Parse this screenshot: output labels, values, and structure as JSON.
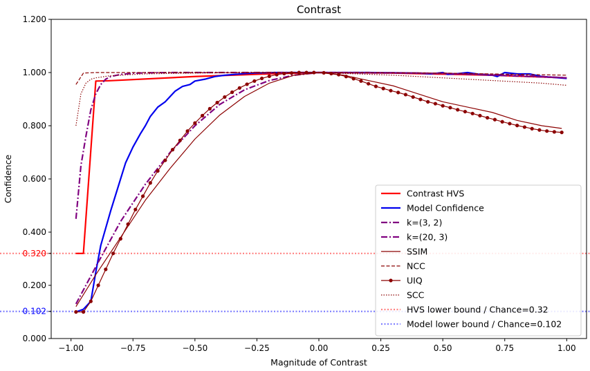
{
  "chart_data": {
    "type": "line",
    "title": "Contrast",
    "xlabel": "Magnitude of Contrast",
    "ylabel": "Confidence",
    "xlim": [
      -1.08,
      1.08
    ],
    "ylim": [
      0.0,
      1.2
    ],
    "xticks": [
      -1.0,
      -0.75,
      -0.5,
      -0.25,
      0.0,
      0.25,
      0.5,
      0.75,
      1.0
    ],
    "xtick_labels": [
      "−1.00",
      "−0.75",
      "−0.50",
      "−0.25",
      "0.00",
      "0.25",
      "0.50",
      "0.75",
      "1.00"
    ],
    "yticks": [
      0.0,
      0.2,
      0.4,
      0.6,
      0.8,
      1.0,
      1.2
    ],
    "ytick_labels": [
      "0.000",
      "0.200",
      "0.400",
      "0.600",
      "0.800",
      "1.000",
      "1.200"
    ],
    "extra_yticks": [
      {
        "value": 0.32,
        "label": "0.320",
        "color": "#ff0000"
      },
      {
        "value": 0.102,
        "label": "0.102",
        "color": "#0000ff"
      }
    ],
    "grid": false,
    "legend_position": "lower-right",
    "hlines": [
      {
        "name": "HVS lower bound / Chance=0.32",
        "y": 0.32,
        "color": "#ff8080",
        "style": "dotted"
      },
      {
        "name": "Model lower bound / Chance=0.102",
        "y": 0.102,
        "color": "#8080ff",
        "style": "dotted"
      }
    ],
    "series": [
      {
        "name": "Contrast HVS",
        "color": "#ff0000",
        "style": "solid",
        "width": 2.2,
        "x": [
          -0.98,
          -0.95,
          -0.9,
          -0.85,
          -0.5,
          -0.2,
          0.0,
          0.3,
          0.7,
          1.0
        ],
        "y": [
          0.32,
          0.32,
          0.968,
          0.969,
          0.985,
          0.995,
          1.0,
          0.998,
          0.99,
          0.98
        ]
      },
      {
        "name": "Model Confidence",
        "color": "#0000ee",
        "style": "solid",
        "width": 2.2,
        "x": [
          -0.98,
          -0.95,
          -0.92,
          -0.9,
          -0.88,
          -0.84,
          -0.8,
          -0.78,
          -0.75,
          -0.72,
          -0.7,
          -0.68,
          -0.65,
          -0.62,
          -0.6,
          -0.58,
          -0.55,
          -0.52,
          -0.5,
          -0.46,
          -0.42,
          -0.38,
          -0.34,
          -0.3,
          -0.26,
          -0.22,
          -0.18,
          -0.14,
          -0.1,
          -0.06,
          0.0,
          0.1,
          0.2,
          0.3,
          0.4,
          0.45,
          0.5,
          0.52,
          0.55,
          0.6,
          0.65,
          0.7,
          0.72,
          0.75,
          0.8,
          0.85,
          0.9,
          1.0
        ],
        "y": [
          0.1,
          0.11,
          0.14,
          0.25,
          0.35,
          0.48,
          0.6,
          0.66,
          0.72,
          0.77,
          0.8,
          0.835,
          0.87,
          0.89,
          0.91,
          0.93,
          0.948,
          0.955,
          0.968,
          0.975,
          0.985,
          0.99,
          0.993,
          0.996,
          0.998,
          0.999,
          1.0,
          1.0,
          1.0,
          1.0,
          1.0,
          1.0,
          1.0,
          0.999,
          0.998,
          0.995,
          1.0,
          0.993,
          0.995,
          1.0,
          0.993,
          0.99,
          0.985,
          1.0,
          0.995,
          0.995,
          0.985,
          0.978
        ]
      },
      {
        "name": "k=(3, 2)",
        "color": "#800080",
        "style": "dashdot",
        "width": 2.2,
        "x": [
          -0.98,
          -0.9,
          -0.8,
          -0.7,
          -0.6,
          -0.5,
          -0.4,
          -0.3,
          -0.2,
          -0.1,
          0.0,
          0.2,
          0.4,
          0.6,
          0.8,
          1.0
        ],
        "y": [
          0.13,
          0.27,
          0.44,
          0.58,
          0.7,
          0.8,
          0.88,
          0.935,
          0.97,
          0.99,
          1.0,
          1.0,
          0.998,
          0.995,
          0.99,
          0.98
        ]
      },
      {
        "name": "k=(20, 3)",
        "color": "#800080",
        "style": "dashdot",
        "width": 2.2,
        "x": [
          -0.98,
          -0.96,
          -0.94,
          -0.92,
          -0.9,
          -0.88,
          -0.86,
          -0.84,
          -0.8,
          -0.75,
          -0.7,
          -0.6,
          -0.5,
          -0.3,
          0.0,
          0.5,
          1.0
        ],
        "y": [
          0.45,
          0.65,
          0.76,
          0.86,
          0.92,
          0.955,
          0.975,
          0.985,
          0.993,
          0.997,
          0.999,
          1.0,
          1.0,
          1.0,
          1.0,
          0.997,
          0.98
        ]
      },
      {
        "name": "SSIM",
        "color": "#8b0000",
        "style": "solid",
        "width": 1.2,
        "x": [
          -0.98,
          -0.9,
          -0.8,
          -0.7,
          -0.6,
          -0.5,
          -0.4,
          -0.3,
          -0.2,
          -0.1,
          0.0,
          0.1,
          0.2,
          0.3,
          0.4,
          0.5,
          0.6,
          0.7,
          0.8,
          0.9,
          0.98
        ],
        "y": [
          0.12,
          0.24,
          0.38,
          0.52,
          0.64,
          0.75,
          0.84,
          0.91,
          0.96,
          0.99,
          1.0,
          0.99,
          0.97,
          0.95,
          0.92,
          0.89,
          0.87,
          0.85,
          0.82,
          0.8,
          0.79
        ]
      },
      {
        "name": "NCC",
        "color": "#8b0000",
        "style": "dashed",
        "width": 1.2,
        "x": [
          -0.98,
          -0.95,
          -0.9,
          -0.8,
          -0.5,
          0.0,
          0.5,
          1.0
        ],
        "y": [
          0.955,
          0.998,
          1.0,
          1.0,
          1.0,
          1.0,
          0.998,
          0.99
        ]
      },
      {
        "name": "UIQ",
        "color": "#8b0000",
        "style": "solid-marker",
        "width": 1.2,
        "x": [
          -0.98,
          -0.95,
          -0.92,
          -0.89,
          -0.86,
          -0.83,
          -0.8,
          -0.77,
          -0.74,
          -0.71,
          -0.68,
          -0.65,
          -0.62,
          -0.59,
          -0.56,
          -0.53,
          -0.5,
          -0.47,
          -0.44,
          -0.41,
          -0.38,
          -0.35,
          -0.32,
          -0.29,
          -0.26,
          -0.23,
          -0.2,
          -0.17,
          -0.14,
          -0.11,
          -0.08,
          -0.05,
          -0.02,
          0.02,
          0.05,
          0.08,
          0.11,
          0.14,
          0.17,
          0.2,
          0.23,
          0.26,
          0.29,
          0.32,
          0.35,
          0.38,
          0.41,
          0.44,
          0.47,
          0.5,
          0.53,
          0.56,
          0.59,
          0.62,
          0.65,
          0.68,
          0.71,
          0.74,
          0.77,
          0.8,
          0.83,
          0.86,
          0.89,
          0.92,
          0.95,
          0.98
        ],
        "y": [
          0.1,
          0.1,
          0.14,
          0.2,
          0.26,
          0.32,
          0.375,
          0.43,
          0.485,
          0.535,
          0.585,
          0.63,
          0.67,
          0.71,
          0.745,
          0.78,
          0.81,
          0.838,
          0.864,
          0.887,
          0.908,
          0.926,
          0.942,
          0.956,
          0.968,
          0.978,
          0.986,
          0.992,
          0.996,
          0.998,
          1.0,
          1.0,
          1.0,
          0.999,
          0.996,
          0.992,
          0.985,
          0.977,
          0.968,
          0.958,
          0.948,
          0.94,
          0.932,
          0.925,
          0.917,
          0.908,
          0.899,
          0.89,
          0.883,
          0.875,
          0.868,
          0.86,
          0.853,
          0.846,
          0.838,
          0.83,
          0.823,
          0.815,
          0.808,
          0.801,
          0.795,
          0.789,
          0.784,
          0.78,
          0.777,
          0.775
        ]
      },
      {
        "name": "SCC",
        "color": "#8b0000",
        "style": "dotted",
        "width": 1.2,
        "x": [
          -0.98,
          -0.96,
          -0.94,
          -0.92,
          -0.9,
          -0.85,
          -0.8,
          -0.7,
          -0.5,
          -0.3,
          0.0,
          0.3,
          0.5,
          0.7,
          0.9,
          1.0
        ],
        "y": [
          0.8,
          0.92,
          0.96,
          0.975,
          0.98,
          0.987,
          0.99,
          0.995,
          0.998,
          1.0,
          1.0,
          0.99,
          0.98,
          0.97,
          0.96,
          0.952
        ]
      }
    ]
  }
}
